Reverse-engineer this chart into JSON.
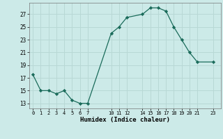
{
  "x": [
    0,
    1,
    2,
    3,
    4,
    5,
    6,
    7,
    10,
    11,
    12,
    14,
    15,
    16,
    17,
    18,
    19,
    20,
    21,
    23
  ],
  "y": [
    17.5,
    15.0,
    15.0,
    14.5,
    15.0,
    13.5,
    13.0,
    13.0,
    24.0,
    25.0,
    26.5,
    27.0,
    28.0,
    28.0,
    27.5,
    25.0,
    23.0,
    21.0,
    19.5,
    19.5
  ],
  "xticks": [
    0,
    1,
    2,
    3,
    4,
    5,
    6,
    7,
    10,
    11,
    12,
    14,
    15,
    16,
    17,
    18,
    19,
    20,
    21,
    23
  ],
  "yticks": [
    13,
    15,
    17,
    19,
    21,
    23,
    25,
    27
  ],
  "ylim": [
    12.2,
    28.8
  ],
  "xlim": [
    -0.5,
    24.0
  ],
  "xlabel": "Humidex (Indice chaleur)",
  "line_color": "#1a6b5a",
  "marker": "D",
  "marker_size": 2.2,
  "background_color": "#cceae8",
  "grid_color": "#b8d8d5",
  "title": ""
}
